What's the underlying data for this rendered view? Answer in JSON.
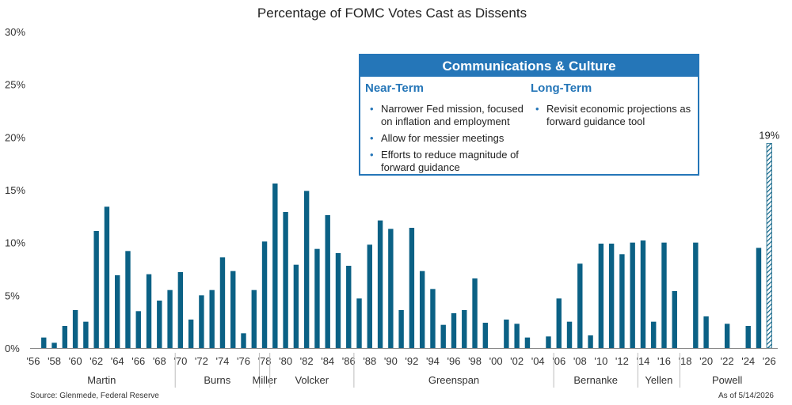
{
  "chart_data": {
    "type": "bar",
    "title": "Percentage of FOMC Votes Cast as Dissents",
    "ylim": [
      0,
      30
    ],
    "yticks": [
      "0%",
      "5%",
      "10%",
      "15%",
      "20%",
      "25%",
      "30%"
    ],
    "x_tick_labels": [
      "'56",
      "'58",
      "'60",
      "'62",
      "'64",
      "'66",
      "'68",
      "'70",
      "'72",
      "'74",
      "'76",
      "'78",
      "'80",
      "'82",
      "'84",
      "'86",
      "'88",
      "'90",
      "'92",
      "'94",
      "'96",
      "'98",
      "'00",
      "'02",
      "'04",
      "'06",
      "'08",
      "'10",
      "'12",
      "'14",
      "'16",
      "'18",
      "'20",
      "'22",
      "'24",
      "'26"
    ],
    "categories": [
      1956,
      1957,
      1958,
      1959,
      1960,
      1961,
      1962,
      1963,
      1964,
      1965,
      1966,
      1967,
      1968,
      1969,
      1970,
      1971,
      1972,
      1973,
      1974,
      1975,
      1976,
      1977,
      1978,
      1979,
      1980,
      1981,
      1982,
      1983,
      1984,
      1985,
      1986,
      1987,
      1988,
      1989,
      1990,
      1991,
      1992,
      1993,
      1994,
      1995,
      1996,
      1997,
      1998,
      1999,
      2000,
      2001,
      2002,
      2003,
      2004,
      2005,
      2006,
      2007,
      2008,
      2009,
      2010,
      2011,
      2012,
      2013,
      2014,
      2015,
      2016,
      2017,
      2018,
      2019,
      2020,
      2021,
      2022,
      2023,
      2024,
      2025,
      2026
    ],
    "values": [
      0,
      1.0,
      0.5,
      2.1,
      3.6,
      2.5,
      11.1,
      13.4,
      6.9,
      9.2,
      3.5,
      7.0,
      4.5,
      5.5,
      7.2,
      2.7,
      5.0,
      5.5,
      8.6,
      7.3,
      1.4,
      5.5,
      10.1,
      15.6,
      12.9,
      7.9,
      14.9,
      9.4,
      12.6,
      9.0,
      7.8,
      4.7,
      9.8,
      12.1,
      11.3,
      3.6,
      11.4,
      7.3,
      5.6,
      2.2,
      3.3,
      3.6,
      6.6,
      2.4,
      0,
      2.7,
      2.3,
      1.0,
      0,
      1.1,
      4.7,
      2.5,
      8.0,
      1.2,
      9.9,
      9.9,
      8.9,
      10.0,
      10.2,
      2.5,
      10.0,
      5.4,
      0,
      10.0,
      3.0,
      0,
      2.3,
      0,
      2.1,
      9.5,
      19.4
    ],
    "highlight": {
      "category": 2026,
      "label": "19%",
      "pattern": "hatched"
    },
    "series_color": "#0b6185",
    "eras": [
      {
        "name": "Martin",
        "start": 1956,
        "end": 1969
      },
      {
        "name": "Burns",
        "start": 1970,
        "end": 1977
      },
      {
        "name": "Miller",
        "start": 1978,
        "end": 1978
      },
      {
        "name": "Volcker",
        "start": 1979,
        "end": 1986
      },
      {
        "name": "Greenspan",
        "start": 1987,
        "end": 2005
      },
      {
        "name": "Bernanke",
        "start": 2006,
        "end": 2013
      },
      {
        "name": "Yellen",
        "start": 2014,
        "end": 2017
      },
      {
        "name": "Powell",
        "start": 2018,
        "end": 2026
      }
    ]
  },
  "info_box": {
    "title": "Communications & Culture",
    "accent_color": "#2576b8",
    "near_term": {
      "heading": "Near-Term",
      "bullets": [
        {
          "line1": "Narrower Fed mission, focused",
          "line2": "on inflation and employment"
        },
        {
          "line1": "Allow for messier meetings",
          "line2": ""
        },
        {
          "line1": "Efforts to reduce magnitude of",
          "line2": "forward guidance"
        }
      ]
    },
    "long_term": {
      "heading": "Long-Term",
      "bullets": [
        {
          "line1": "Revisit economic projections as",
          "line2": "forward guidance tool"
        }
      ]
    }
  },
  "footer": {
    "source": "Source: Glenmede, Federal Reserve",
    "as_of": "As of 5/14/2026"
  }
}
